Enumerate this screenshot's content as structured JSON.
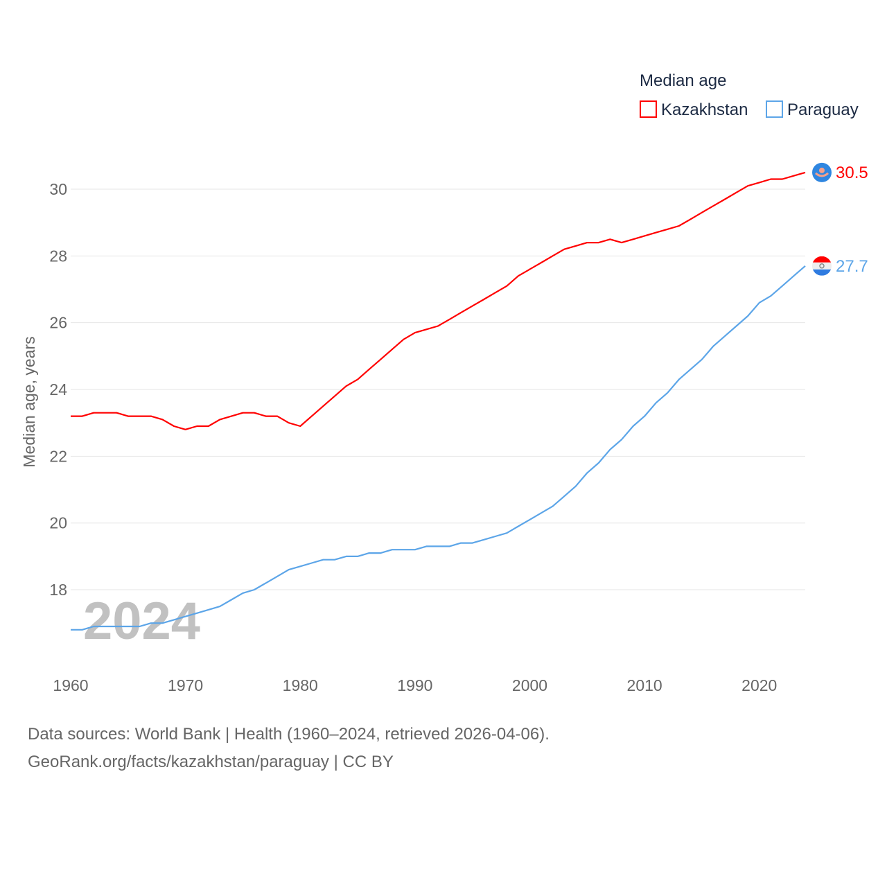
{
  "chart_data": {
    "type": "line",
    "title": "Median age",
    "xlabel": "",
    "ylabel": "Median age, years",
    "xlim": [
      1960,
      2024
    ],
    "ylim": [
      16,
      30.8
    ],
    "x_ticks": [
      "1960",
      "1970",
      "1980",
      "1990",
      "2000",
      "2010",
      "2020"
    ],
    "y_ticks": [
      "18",
      "20",
      "22",
      "24",
      "26",
      "28",
      "30"
    ],
    "grid": true,
    "legend_position": "top-right",
    "watermark_year": "2024",
    "x": [
      1960,
      1961,
      1962,
      1963,
      1964,
      1965,
      1966,
      1967,
      1968,
      1969,
      1970,
      1971,
      1972,
      1973,
      1974,
      1975,
      1976,
      1977,
      1978,
      1979,
      1980,
      1981,
      1982,
      1983,
      1984,
      1985,
      1986,
      1987,
      1988,
      1989,
      1990,
      1991,
      1992,
      1993,
      1994,
      1995,
      1996,
      1997,
      1998,
      1999,
      2000,
      2001,
      2002,
      2003,
      2004,
      2005,
      2006,
      2007,
      2008,
      2009,
      2010,
      2011,
      2012,
      2013,
      2014,
      2015,
      2016,
      2017,
      2018,
      2019,
      2020,
      2021,
      2022,
      2023,
      2024
    ],
    "series": [
      {
        "name": "Kazakhstan",
        "color": "#ff0000",
        "end_label": "30.5",
        "values": [
          23.2,
          23.2,
          23.3,
          23.3,
          23.3,
          23.2,
          23.2,
          23.2,
          23.1,
          22.9,
          22.8,
          22.9,
          22.9,
          23.1,
          23.2,
          23.3,
          23.3,
          23.2,
          23.2,
          23.0,
          22.9,
          23.2,
          23.5,
          23.8,
          24.1,
          24.3,
          24.6,
          24.9,
          25.2,
          25.5,
          25.7,
          25.8,
          25.9,
          26.1,
          26.3,
          26.5,
          26.7,
          26.9,
          27.1,
          27.4,
          27.6,
          27.8,
          28.0,
          28.2,
          28.3,
          28.4,
          28.4,
          28.5,
          28.4,
          28.5,
          28.6,
          28.7,
          28.8,
          28.9,
          29.1,
          29.3,
          29.5,
          29.7,
          29.9,
          30.1,
          30.2,
          30.3,
          30.3,
          30.4,
          30.5
        ]
      },
      {
        "name": "Paraguay",
        "color": "#5ca5e8",
        "end_label": "27.7",
        "values": [
          16.8,
          16.8,
          16.9,
          16.9,
          16.9,
          16.9,
          16.9,
          17.0,
          17.0,
          17.1,
          17.2,
          17.3,
          17.4,
          17.5,
          17.7,
          17.9,
          18.0,
          18.2,
          18.4,
          18.6,
          18.7,
          18.8,
          18.9,
          18.9,
          19.0,
          19.0,
          19.1,
          19.1,
          19.2,
          19.2,
          19.2,
          19.3,
          19.3,
          19.3,
          19.4,
          19.4,
          19.5,
          19.6,
          19.7,
          19.9,
          20.1,
          20.3,
          20.5,
          20.8,
          21.1,
          21.5,
          21.8,
          22.2,
          22.5,
          22.9,
          23.2,
          23.6,
          23.9,
          24.3,
          24.6,
          24.9,
          25.3,
          25.6,
          25.9,
          26.2,
          26.6,
          26.8,
          27.1,
          27.4,
          27.7
        ]
      }
    ]
  },
  "footer": {
    "line1": "Data sources: World Bank | Health (1960–2024, retrieved 2026-04-06).",
    "line2": "GeoRank.org/facts/kazakhstan/paraguay | CC BY"
  }
}
